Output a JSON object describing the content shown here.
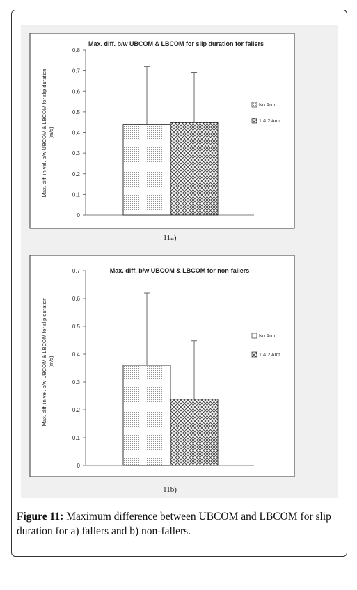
{
  "chart_data": [
    {
      "type": "bar",
      "title": "Max. diff. b/w UBCOM & LBCOM for slip duration for fallers",
      "ylabel": "Max. diff. in vel. b/w UBCOM & LBCOM for slip duration (m/s)",
      "ylim": [
        0,
        0.8
      ],
      "yticks": [
        "0",
        "0.1",
        "0.2",
        "0.3",
        "0.4",
        "0.5",
        "0.6",
        "0.7",
        "0.8"
      ],
      "series": [
        {
          "name": "No Arm",
          "values": [
            0.44
          ],
          "error": [
            0.28
          ]
        },
        {
          "name": "1 & 2 Arm",
          "values": [
            0.448
          ],
          "error": [
            0.242
          ]
        }
      ],
      "legend": "right",
      "panel_label": "11a)"
    },
    {
      "type": "bar",
      "title": "Max. diff. b/w UBCOM & LBCOM for non-fallers",
      "ylabel": "Max. diff. in vel. b/w UBCOM & LBCOM for slip duration (m/s)",
      "ylim": [
        0,
        0.7
      ],
      "yticks": [
        "0",
        "0.1",
        "0.2",
        "0.3",
        "0.4",
        "0.5",
        "0.6",
        "0.7"
      ],
      "series": [
        {
          "name": "No Arm",
          "values": [
            0.36
          ],
          "error": [
            0.26
          ]
        },
        {
          "name": "1 & 2 Arm",
          "values": [
            0.238
          ],
          "error": [
            0.21
          ]
        }
      ],
      "legend": "right",
      "panel_label": "11b)"
    }
  ],
  "caption": {
    "label": "Figure 11:",
    "text": " Maximum difference between UBCOM and LBCOM for slip duration for a) fallers and b) non-fallers."
  },
  "colors": {
    "bar_fill": "#ffffff",
    "pattern": "#555555",
    "axis": "#444444",
    "scan_bg": "#f0f0f0"
  }
}
